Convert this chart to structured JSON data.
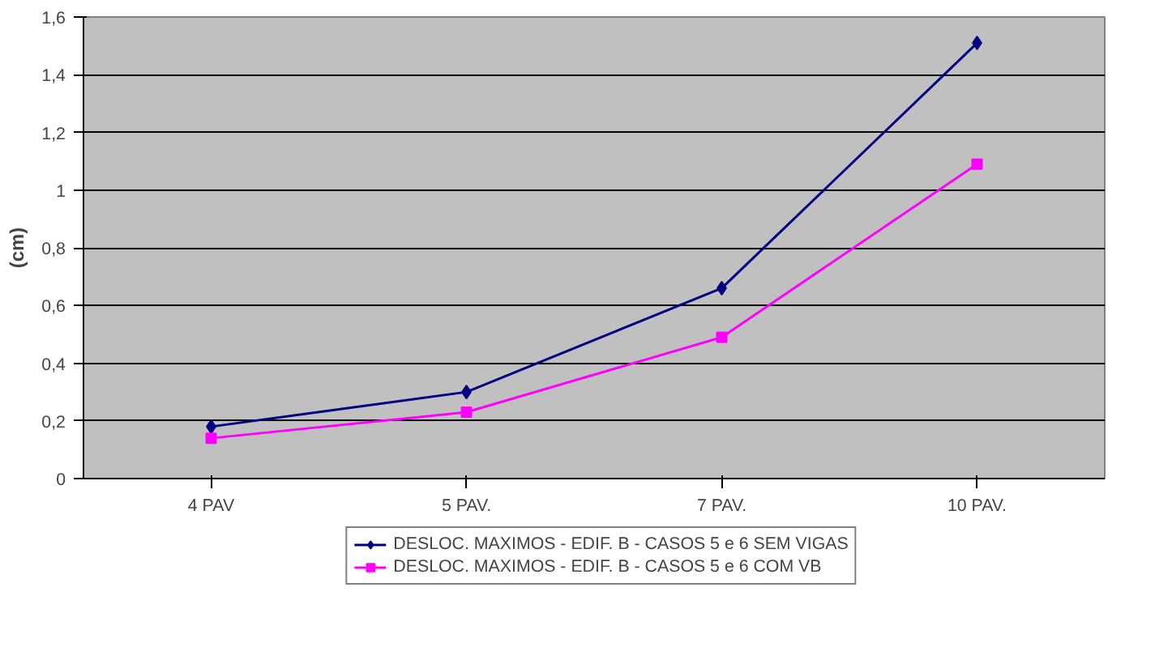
{
  "chart_data": {
    "type": "line",
    "ylabel": "(cm)",
    "categories": [
      "4 PAV",
      "5 PAV.",
      "7 PAV.",
      "10 PAV."
    ],
    "ylim": [
      0,
      1.6
    ],
    "yticks": [
      0,
      {
        "value": 0.2,
        "label": "0,2"
      },
      {
        "value": 0.4,
        "label": "0,4"
      },
      {
        "value": 0.6,
        "label": "0,6"
      },
      {
        "value": 0.8,
        "label": "0,8"
      },
      1,
      {
        "value": 1.2,
        "label": "1,2"
      },
      {
        "value": 1.4,
        "label": "1,4"
      },
      {
        "value": 1.6,
        "label": "1,6"
      }
    ],
    "grid": "y",
    "legend": "bottom",
    "line_style": "solid",
    "series": [
      {
        "name": "DESLOC. MAXIMOS - EDIF. B - CASOS 5 e 6 SEM VIGAS",
        "color": "#000080",
        "marker": "diamond",
        "values": [
          0.18,
          0.3,
          0.66,
          1.51
        ]
      },
      {
        "name": "DESLOC. MAXIMOS - EDIF. B - CASOS 5 e 6 COM VB",
        "color": "#ff00ff",
        "marker": "square",
        "values": [
          0.14,
          0.23,
          0.49,
          1.09
        ]
      }
    ]
  }
}
